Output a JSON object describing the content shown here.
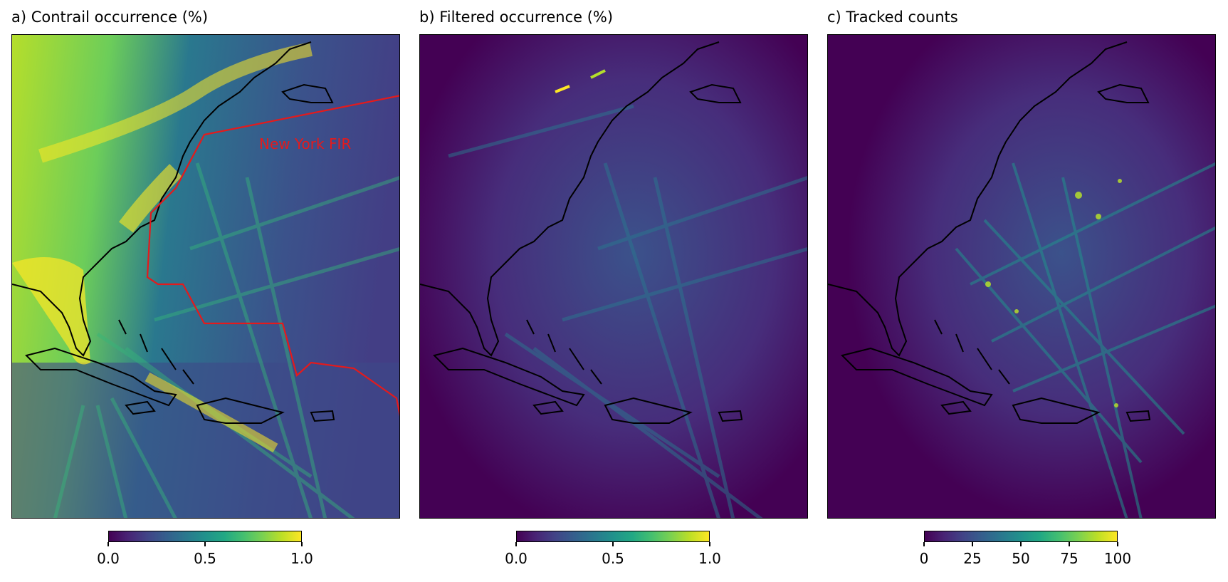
{
  "chart_data": [
    {
      "type": "heatmap",
      "title": "a) Contrail occurrence (%)",
      "annotation": "New York FIR",
      "overlays": [
        "coastlines",
        "New York FIR boundary (red)"
      ],
      "colormap": "viridis",
      "colorbar": {
        "range": [
          0.0,
          1.0
        ],
        "ticks": [
          "0.0",
          "0.5",
          "1.0"
        ]
      },
      "colors": {
        "fir_boundary": "#e41a1c",
        "coastline": "#000000",
        "low": "#440154",
        "high": "#fde725"
      }
    },
    {
      "type": "heatmap",
      "title": "b) Filtered occurrence (%)",
      "overlays": [
        "coastlines"
      ],
      "colormap": "viridis",
      "colorbar": {
        "range": [
          0.0,
          1.0
        ],
        "ticks": [
          "0.0",
          "0.5",
          "1.0"
        ]
      },
      "colors": {
        "coastline": "#000000",
        "low": "#440154",
        "high": "#fde725"
      }
    },
    {
      "type": "heatmap",
      "title": "c) Tracked counts",
      "overlays": [
        "coastlines"
      ],
      "colormap": "viridis",
      "colorbar": {
        "range": [
          0,
          100
        ],
        "ticks": [
          "0",
          "25",
          "50",
          "75",
          "100"
        ]
      },
      "colors": {
        "coastline": "#000000",
        "low": "#440154",
        "high": "#fde725"
      }
    }
  ]
}
